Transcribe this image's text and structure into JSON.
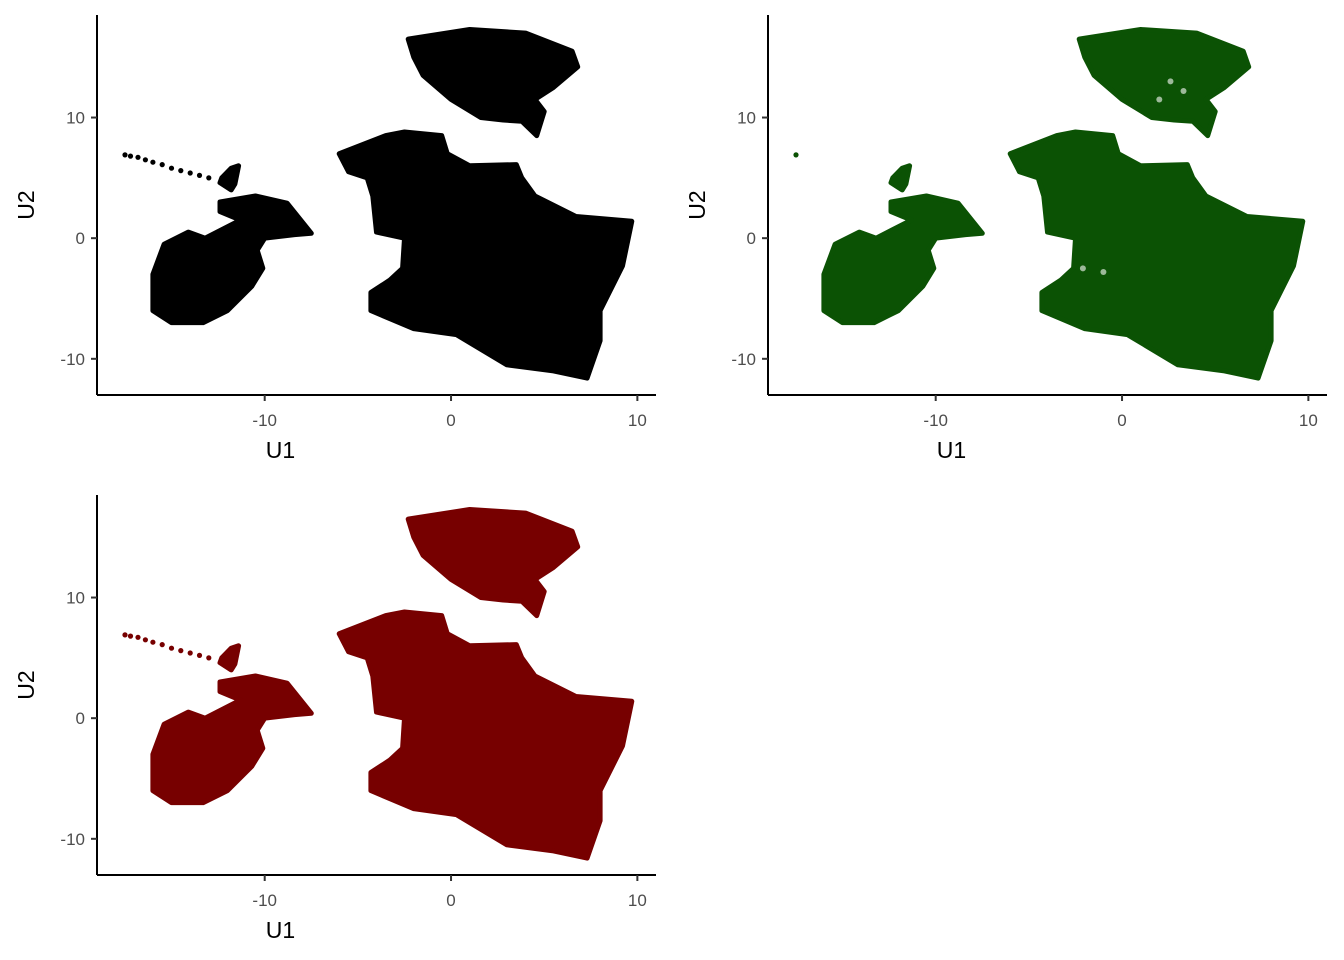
{
  "chart_data": [
    {
      "type": "scatter",
      "panel": "top-left",
      "color": "#000000",
      "xlabel": "U1",
      "ylabel": "U2",
      "xlim": [
        -19,
        11
      ],
      "ylim": [
        -13,
        18.5
      ],
      "xticks": [
        "-10",
        "0",
        "10"
      ],
      "yticks": [
        "-10",
        "0",
        "10"
      ],
      "grid": false,
      "legend": "none",
      "clusters": [
        {
          "name_hint": "top",
          "outline": [
            [
              -2.3,
              16.5
            ],
            [
              1,
              17.3
            ],
            [
              4,
              17.0
            ],
            [
              6.5,
              15.5
            ],
            [
              6.8,
              14.2
            ],
            [
              5.5,
              12.5
            ],
            [
              4.5,
              11.5
            ],
            [
              5.0,
              10.5
            ],
            [
              4.6,
              8.5
            ],
            [
              3.8,
              9.7
            ],
            [
              2.8,
              9.8
            ],
            [
              1.6,
              10.0
            ],
            [
              0.0,
              11.5
            ],
            [
              -1.5,
              13.5
            ],
            [
              -2.0,
              15.0
            ]
          ]
        },
        {
          "name_hint": "center",
          "outline": [
            [
              -6,
              7.0
            ],
            [
              -3.5,
              8.5
            ],
            [
              -2.5,
              8.8
            ],
            [
              -0.5,
              8.5
            ],
            [
              -0.2,
              7.0
            ],
            [
              1,
              6.0
            ],
            [
              3.5,
              6.1
            ],
            [
              3.8,
              5.0
            ],
            [
              4.5,
              3.5
            ],
            [
              6.7,
              1.8
            ],
            [
              9.7,
              1.4
            ],
            [
              9.2,
              -2.3
            ],
            [
              8.0,
              -6.0
            ],
            [
              8.0,
              -8.5
            ],
            [
              7.3,
              -11.6
            ],
            [
              5.5,
              -11.0
            ],
            [
              3.0,
              -10.5
            ],
            [
              0.3,
              -8.0
            ],
            [
              -2.0,
              -7.5
            ],
            [
              -4.3,
              -6.0
            ],
            [
              -4.3,
              -4.5
            ],
            [
              -3.3,
              -3.5
            ],
            [
              -2.6,
              -2.5
            ],
            [
              -2.5,
              0
            ],
            [
              -4.0,
              0.5
            ],
            [
              -4.2,
              3.5
            ],
            [
              -4.5,
              5.0
            ],
            [
              -5.5,
              5.5
            ]
          ]
        },
        {
          "name_hint": "left",
          "outline": [
            [
              -16.0,
              -3.0
            ],
            [
              -15.4,
              -0.5
            ],
            [
              -14.1,
              0.5
            ],
            [
              -13.2,
              0.0
            ],
            [
              -11.3,
              1.5
            ],
            [
              -12.4,
              2.2
            ],
            [
              -12.4,
              3.0
            ],
            [
              -10.5,
              3.5
            ],
            [
              -8.8,
              2.9
            ],
            [
              -7.5,
              0.4
            ],
            [
              -8.4,
              0.3
            ],
            [
              -10.0,
              0.0
            ],
            [
              -10.4,
              -1.0
            ],
            [
              -10.1,
              -2.5
            ],
            [
              -10.7,
              -4.0
            ],
            [
              -12.0,
              -6.0
            ],
            [
              -13.3,
              -7.0
            ],
            [
              -15.0,
              -7.0
            ],
            [
              -16.0,
              -6.0
            ],
            [
              -16.0,
              -4.5
            ]
          ]
        },
        {
          "name_hint": "small",
          "outline": [
            [
              -12.3,
              5.0
            ],
            [
              -11.8,
              5.8
            ],
            [
              -11.4,
              6.0
            ],
            [
              -11.6,
              4.5
            ],
            [
              -11.8,
              4.0
            ],
            [
              -12.4,
              4.6
            ]
          ]
        }
      ],
      "trail_points": [
        [
          -17.5,
          6.9
        ],
        [
          -17.2,
          6.8
        ],
        [
          -16.8,
          6.7
        ],
        [
          -16.4,
          6.5
        ],
        [
          -16,
          6.3
        ],
        [
          -15.5,
          6.1
        ],
        [
          -15.0,
          5.8
        ],
        [
          -14.5,
          5.6
        ],
        [
          -14.0,
          5.4
        ],
        [
          -13.5,
          5.2
        ],
        [
          -13.0,
          5.0
        ]
      ]
    },
    {
      "type": "scatter",
      "panel": "top-right",
      "color": "#0b5204",
      "xlabel": "U1",
      "ylabel": "U2",
      "xlim": [
        -19,
        11
      ],
      "ylim": [
        -13,
        18.5
      ],
      "xticks": [
        "-10",
        "0",
        "10"
      ],
      "yticks": [
        "-10",
        "0",
        "10"
      ],
      "grid": false,
      "legend": "none",
      "clusters": [
        {
          "name_hint": "top",
          "outline": [
            [
              -2.3,
              16.5
            ],
            [
              1,
              17.3
            ],
            [
              4,
              17.0
            ],
            [
              6.5,
              15.5
            ],
            [
              6.8,
              14.2
            ],
            [
              5.5,
              12.5
            ],
            [
              4.5,
              11.5
            ],
            [
              5.0,
              10.5
            ],
            [
              4.6,
              8.5
            ],
            [
              3.8,
              9.7
            ],
            [
              2.8,
              9.8
            ],
            [
              1.6,
              10.0
            ],
            [
              0.0,
              11.5
            ],
            [
              -1.5,
              13.5
            ],
            [
              -2.0,
              15.0
            ]
          ]
        },
        {
          "name_hint": "center",
          "outline": [
            [
              -6,
              7.0
            ],
            [
              -3.5,
              8.5
            ],
            [
              -2.5,
              8.8
            ],
            [
              -0.5,
              8.5
            ],
            [
              -0.2,
              7.0
            ],
            [
              1,
              6.0
            ],
            [
              3.5,
              6.1
            ],
            [
              3.8,
              5.0
            ],
            [
              4.5,
              3.5
            ],
            [
              6.7,
              1.8
            ],
            [
              9.7,
              1.4
            ],
            [
              9.2,
              -2.3
            ],
            [
              8.0,
              -6.0
            ],
            [
              8.0,
              -8.5
            ],
            [
              7.3,
              -11.6
            ],
            [
              5.5,
              -11.0
            ],
            [
              3.0,
              -10.5
            ],
            [
              0.3,
              -8.0
            ],
            [
              -2.0,
              -7.5
            ],
            [
              -4.3,
              -6.0
            ],
            [
              -4.3,
              -4.5
            ],
            [
              -3.3,
              -3.5
            ],
            [
              -2.6,
              -2.5
            ],
            [
              -2.5,
              0
            ],
            [
              -4.0,
              0.5
            ],
            [
              -4.2,
              3.5
            ],
            [
              -4.5,
              5.0
            ],
            [
              -5.5,
              5.5
            ]
          ]
        },
        {
          "name_hint": "left",
          "outline": [
            [
              -16.0,
              -3.0
            ],
            [
              -15.4,
              -0.5
            ],
            [
              -14.1,
              0.5
            ],
            [
              -13.2,
              0.0
            ],
            [
              -11.3,
              1.5
            ],
            [
              -12.4,
              2.2
            ],
            [
              -12.4,
              3.0
            ],
            [
              -10.5,
              3.5
            ],
            [
              -8.8,
              2.9
            ],
            [
              -7.5,
              0.4
            ],
            [
              -8.4,
              0.3
            ],
            [
              -10.0,
              0.0
            ],
            [
              -10.4,
              -1.0
            ],
            [
              -10.1,
              -2.5
            ],
            [
              -10.7,
              -4.0
            ],
            [
              -12.0,
              -6.0
            ],
            [
              -13.3,
              -7.0
            ],
            [
              -15.0,
              -7.0
            ],
            [
              -16.0,
              -6.0
            ],
            [
              -16.0,
              -4.5
            ]
          ]
        },
        {
          "name_hint": "small",
          "outline": [
            [
              -12.3,
              5.0
            ],
            [
              -11.8,
              5.8
            ],
            [
              -11.4,
              6.0
            ],
            [
              -11.6,
              4.5
            ],
            [
              -11.8,
              4.0
            ],
            [
              -12.4,
              4.6
            ]
          ]
        }
      ],
      "trail_points": [
        [
          -17.5,
          6.9
        ]
      ]
    },
    {
      "type": "scatter",
      "panel": "bottom-left",
      "color": "#770000",
      "xlabel": "U1",
      "ylabel": "U2",
      "xlim": [
        -19,
        11
      ],
      "ylim": [
        -13,
        18.5
      ],
      "xticks": [
        "-10",
        "0",
        "10"
      ],
      "yticks": [
        "-10",
        "0",
        "10"
      ],
      "grid": false,
      "legend": "none",
      "clusters": [
        {
          "name_hint": "top",
          "outline": [
            [
              -2.3,
              16.5
            ],
            [
              1,
              17.3
            ],
            [
              4,
              17.0
            ],
            [
              6.5,
              15.5
            ],
            [
              6.8,
              14.2
            ],
            [
              5.5,
              12.5
            ],
            [
              4.5,
              11.5
            ],
            [
              5.0,
              10.5
            ],
            [
              4.6,
              8.5
            ],
            [
              3.8,
              9.7
            ],
            [
              2.8,
              9.8
            ],
            [
              1.6,
              10.0
            ],
            [
              0.0,
              11.5
            ],
            [
              -1.5,
              13.5
            ],
            [
              -2.0,
              15.0
            ]
          ]
        },
        {
          "name_hint": "center",
          "outline": [
            [
              -6,
              7.0
            ],
            [
              -3.5,
              8.5
            ],
            [
              -2.5,
              8.8
            ],
            [
              -0.5,
              8.5
            ],
            [
              -0.2,
              7.0
            ],
            [
              1,
              6.0
            ],
            [
              3.5,
              6.1
            ],
            [
              3.8,
              5.0
            ],
            [
              4.5,
              3.5
            ],
            [
              6.7,
              1.8
            ],
            [
              9.7,
              1.4
            ],
            [
              9.2,
              -2.3
            ],
            [
              8.0,
              -6.0
            ],
            [
              8.0,
              -8.5
            ],
            [
              7.3,
              -11.6
            ],
            [
              5.5,
              -11.0
            ],
            [
              3.0,
              -10.5
            ],
            [
              0.3,
              -8.0
            ],
            [
              -2.0,
              -7.5
            ],
            [
              -4.3,
              -6.0
            ],
            [
              -4.3,
              -4.5
            ],
            [
              -3.3,
              -3.5
            ],
            [
              -2.6,
              -2.5
            ],
            [
              -2.5,
              0
            ],
            [
              -4.0,
              0.5
            ],
            [
              -4.2,
              3.5
            ],
            [
              -4.5,
              5.0
            ],
            [
              -5.5,
              5.5
            ]
          ]
        },
        {
          "name_hint": "left",
          "outline": [
            [
              -16.0,
              -3.0
            ],
            [
              -15.4,
              -0.5
            ],
            [
              -14.1,
              0.5
            ],
            [
              -13.2,
              0.0
            ],
            [
              -11.3,
              1.5
            ],
            [
              -12.4,
              2.2
            ],
            [
              -12.4,
              3.0
            ],
            [
              -10.5,
              3.5
            ],
            [
              -8.8,
              2.9
            ],
            [
              -7.5,
              0.4
            ],
            [
              -8.4,
              0.3
            ],
            [
              -10.0,
              0.0
            ],
            [
              -10.4,
              -1.0
            ],
            [
              -10.1,
              -2.5
            ],
            [
              -10.7,
              -4.0
            ],
            [
              -12.0,
              -6.0
            ],
            [
              -13.3,
              -7.0
            ],
            [
              -15.0,
              -7.0
            ],
            [
              -16.0,
              -6.0
            ],
            [
              -16.0,
              -4.5
            ]
          ]
        },
        {
          "name_hint": "small",
          "outline": [
            [
              -12.3,
              5.0
            ],
            [
              -11.8,
              5.8
            ],
            [
              -11.4,
              6.0
            ],
            [
              -11.6,
              4.5
            ],
            [
              -11.8,
              4.0
            ],
            [
              -12.4,
              4.6
            ]
          ]
        }
      ],
      "trail_points": [
        [
          -17.5,
          6.9
        ],
        [
          -17.2,
          6.8
        ],
        [
          -16.8,
          6.7
        ],
        [
          -16.4,
          6.5
        ],
        [
          -16,
          6.3
        ],
        [
          -15.5,
          6.1
        ],
        [
          -15.0,
          5.8
        ],
        [
          -14.5,
          5.6
        ],
        [
          -14.0,
          5.4
        ],
        [
          -13.5,
          5.2
        ],
        [
          -13.0,
          5.0
        ]
      ]
    }
  ]
}
